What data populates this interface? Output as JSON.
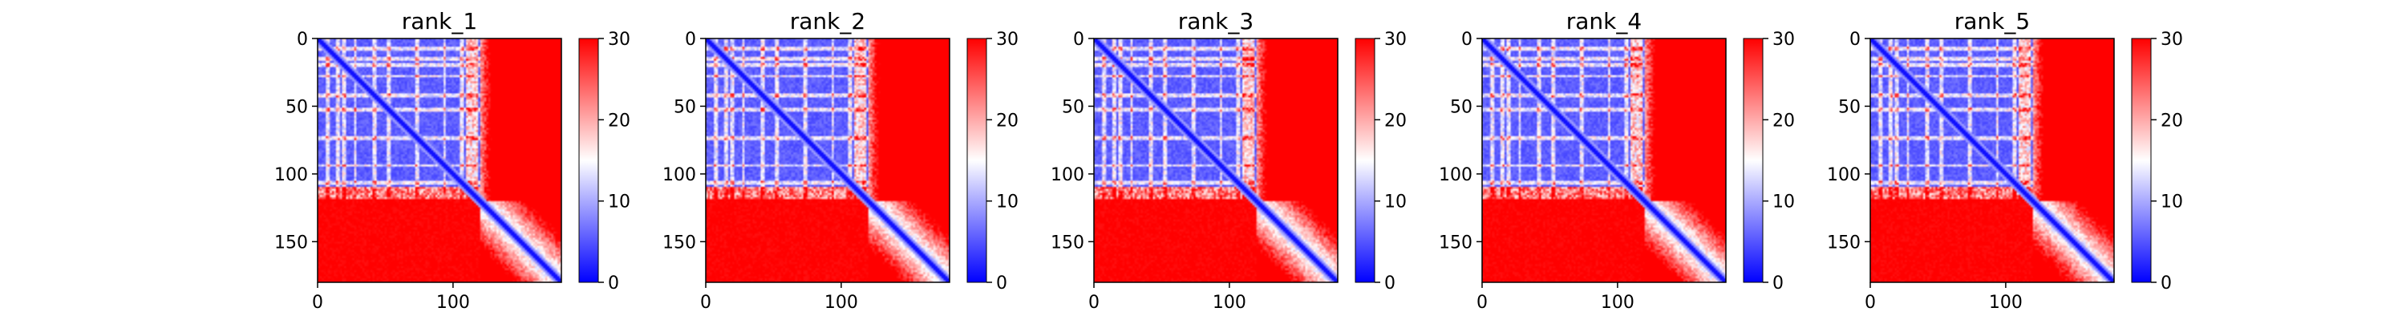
{
  "chart_data": [
    {
      "type": "heatmap",
      "title": "rank_1",
      "x_ticks": [
        "0",
        "100"
      ],
      "y_ticks": [
        "0",
        "50",
        "100",
        "150"
      ],
      "x_range": [
        0,
        180
      ],
      "y_range": [
        0,
        180
      ],
      "colorbar_ticks": [
        "0",
        "10",
        "20",
        "30"
      ],
      "color_range": [
        0,
        30
      ],
      "colormap": [
        "#0000ff",
        "#ffffff",
        "#ff0000"
      ],
      "structured_block_end": 120,
      "lower_block_start": 118,
      "grid": false
    },
    {
      "type": "heatmap",
      "title": "rank_2",
      "x_ticks": [
        "0",
        "100"
      ],
      "y_ticks": [
        "0",
        "50",
        "100",
        "150"
      ],
      "x_range": [
        0,
        180
      ],
      "y_range": [
        0,
        180
      ],
      "colorbar_ticks": [
        "0",
        "10",
        "20",
        "30"
      ],
      "color_range": [
        0,
        30
      ],
      "colormap": [
        "#0000ff",
        "#ffffff",
        "#ff0000"
      ],
      "structured_block_end": 120,
      "lower_block_start": 118,
      "grid": false
    },
    {
      "type": "heatmap",
      "title": "rank_3",
      "x_ticks": [
        "0",
        "100"
      ],
      "y_ticks": [
        "0",
        "50",
        "100",
        "150"
      ],
      "x_range": [
        0,
        180
      ],
      "y_range": [
        0,
        180
      ],
      "colorbar_ticks": [
        "0",
        "10",
        "20",
        "30"
      ],
      "color_range": [
        0,
        30
      ],
      "colormap": [
        "#0000ff",
        "#ffffff",
        "#ff0000"
      ],
      "structured_block_end": 120,
      "lower_block_start": 118,
      "grid": false
    },
    {
      "type": "heatmap",
      "title": "rank_4",
      "x_ticks": [
        "0",
        "100"
      ],
      "y_ticks": [
        "0",
        "50",
        "100",
        "150"
      ],
      "x_range": [
        0,
        180
      ],
      "y_range": [
        0,
        180
      ],
      "colorbar_ticks": [
        "0",
        "10",
        "20",
        "30"
      ],
      "color_range": [
        0,
        30
      ],
      "colormap": [
        "#0000ff",
        "#ffffff",
        "#ff0000"
      ],
      "structured_block_end": 120,
      "lower_block_start": 118,
      "grid": false
    },
    {
      "type": "heatmap",
      "title": "rank_5",
      "x_ticks": [
        "0",
        "100"
      ],
      "y_ticks": [
        "0",
        "50",
        "100",
        "150"
      ],
      "x_range": [
        0,
        180
      ],
      "y_range": [
        0,
        180
      ],
      "colorbar_ticks": [
        "0",
        "10",
        "20",
        "30"
      ],
      "color_range": [
        0,
        30
      ],
      "colormap": [
        "#0000ff",
        "#ffffff",
        "#ff0000"
      ],
      "structured_block_end": 120,
      "lower_block_start": 118,
      "grid": false
    }
  ]
}
